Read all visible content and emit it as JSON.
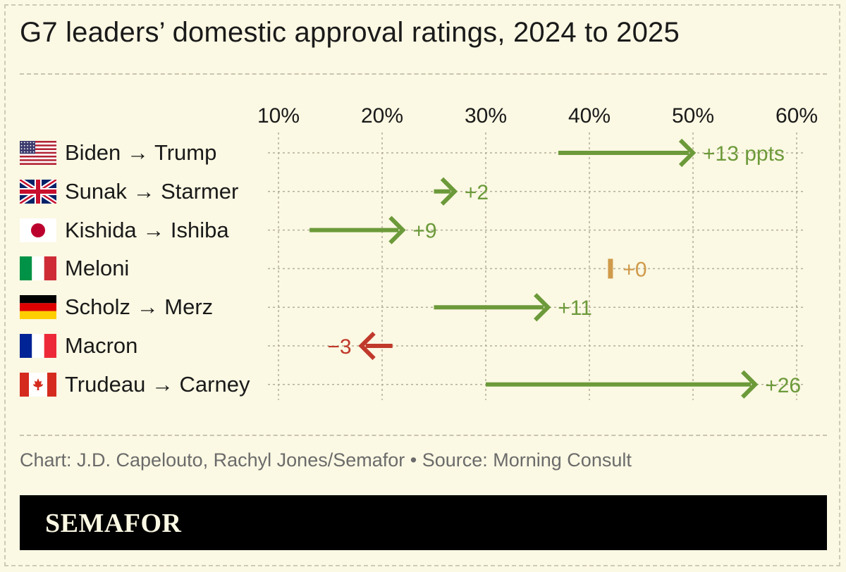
{
  "header": {
    "title": "G7 leaders’ domestic approval ratings, 2024 to 2025"
  },
  "footer": {
    "credit": "Chart: J.D. Capelouto, Rachyl Jones/Semafor • Source: Morning Consult",
    "brand": "SEMAFOR"
  },
  "chart_data": {
    "type": "dumbbell-arrow",
    "title": "G7 leaders’ domestic approval ratings, 2024 to 2025",
    "x_ticks": [
      "10%",
      "20%",
      "30%",
      "40%",
      "50%",
      "60%"
    ],
    "x_tick_values": [
      10,
      20,
      30,
      40,
      50,
      60
    ],
    "xlim": [
      10,
      60
    ],
    "unit": "%",
    "rows": [
      {
        "flag": "us-flag",
        "label": "Biden → Trump",
        "from": 37,
        "to": 50,
        "change": "+13 ppts",
        "direction": "up"
      },
      {
        "flag": "uk-flag",
        "label": "Sunak → Starmer",
        "from": 25,
        "to": 27,
        "change": "+2",
        "direction": "up"
      },
      {
        "flag": "japan-flag",
        "label": "Kishida → Ishiba",
        "from": 13,
        "to": 22,
        "change": "+9",
        "direction": "up"
      },
      {
        "flag": "italy-flag",
        "label": "Meloni",
        "from": 42,
        "to": 42,
        "change": "+0",
        "direction": "flat"
      },
      {
        "flag": "germany-flag",
        "label": "Scholz → Merz",
        "from": 25,
        "to": 36,
        "change": "+11",
        "direction": "up"
      },
      {
        "flag": "france-flag",
        "label": "Macron",
        "from": 21,
        "to": 18,
        "change": "−3",
        "direction": "down"
      },
      {
        "flag": "canada-flag",
        "label": "Trudeau → Carney",
        "from": 30,
        "to": 56,
        "change": "+26",
        "direction": "up"
      }
    ],
    "colors": {
      "up": "#6c9a3a",
      "flat": "#cf9a4a",
      "down": "#c0392b",
      "grid": "#b3ae98"
    }
  }
}
